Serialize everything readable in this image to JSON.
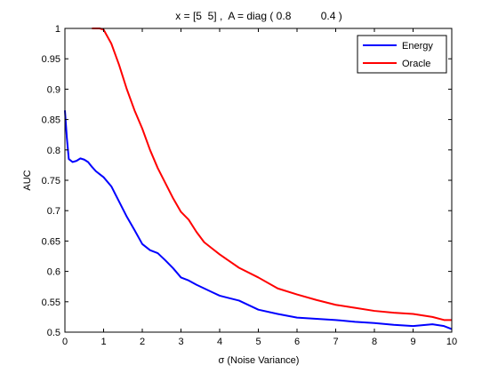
{
  "chart_data": {
    "type": "line",
    "title": "x = [5  5] ,  A = diag ( 0.8          0.4 )",
    "xlabel": "σ (Noise Variance)",
    "ylabel": "AUC",
    "xlim": [
      0,
      10
    ],
    "ylim": [
      0.5,
      1
    ],
    "xticks": [
      "0",
      "1",
      "2",
      "3",
      "4",
      "5",
      "6",
      "7",
      "8",
      "9",
      "10"
    ],
    "yticks": [
      "0.5",
      "0.55",
      "0.6",
      "0.65",
      "0.7",
      "0.75",
      "0.8",
      "0.85",
      "0.9",
      "0.95",
      "1"
    ],
    "grid": false,
    "legend_position": "top-right",
    "colors": {
      "Energy": "#0000ff",
      "Oracle": "#ff0000"
    },
    "x": [
      0,
      0.05,
      0.1,
      0.2,
      0.3,
      0.4,
      0.5,
      0.6,
      0.7,
      0.8,
      0.9,
      1.0,
      1.2,
      1.4,
      1.6,
      1.8,
      2.0,
      2.2,
      2.4,
      2.6,
      2.8,
      3.0,
      3.2,
      3.4,
      3.6,
      3.8,
      4.0,
      4.5,
      5.0,
      5.5,
      6.0,
      6.5,
      7.0,
      7.5,
      8.0,
      8.5,
      9.0,
      9.5,
      9.8,
      10.0
    ],
    "series": [
      {
        "name": "Energy",
        "values": [
          0.865,
          0.82,
          0.785,
          0.78,
          0.782,
          0.786,
          0.784,
          0.78,
          0.772,
          0.765,
          0.76,
          0.755,
          0.74,
          0.715,
          0.69,
          0.668,
          0.645,
          0.635,
          0.63,
          0.618,
          0.605,
          0.59,
          0.585,
          0.578,
          0.572,
          0.566,
          0.56,
          0.552,
          0.537,
          0.53,
          0.524,
          0.522,
          0.52,
          0.517,
          0.515,
          0.512,
          0.51,
          0.513,
          0.51,
          0.505
        ]
      },
      {
        "name": "Oracle",
        "values": [
          null,
          null,
          null,
          null,
          null,
          null,
          null,
          null,
          1.0,
          1.0,
          1.0,
          0.998,
          0.975,
          0.94,
          0.9,
          0.865,
          0.835,
          0.8,
          0.77,
          0.745,
          0.72,
          0.698,
          0.685,
          0.665,
          0.648,
          0.638,
          0.628,
          0.606,
          0.59,
          0.572,
          0.562,
          0.553,
          0.545,
          0.54,
          0.535,
          0.532,
          0.53,
          0.525,
          0.52,
          0.52
        ]
      }
    ]
  }
}
